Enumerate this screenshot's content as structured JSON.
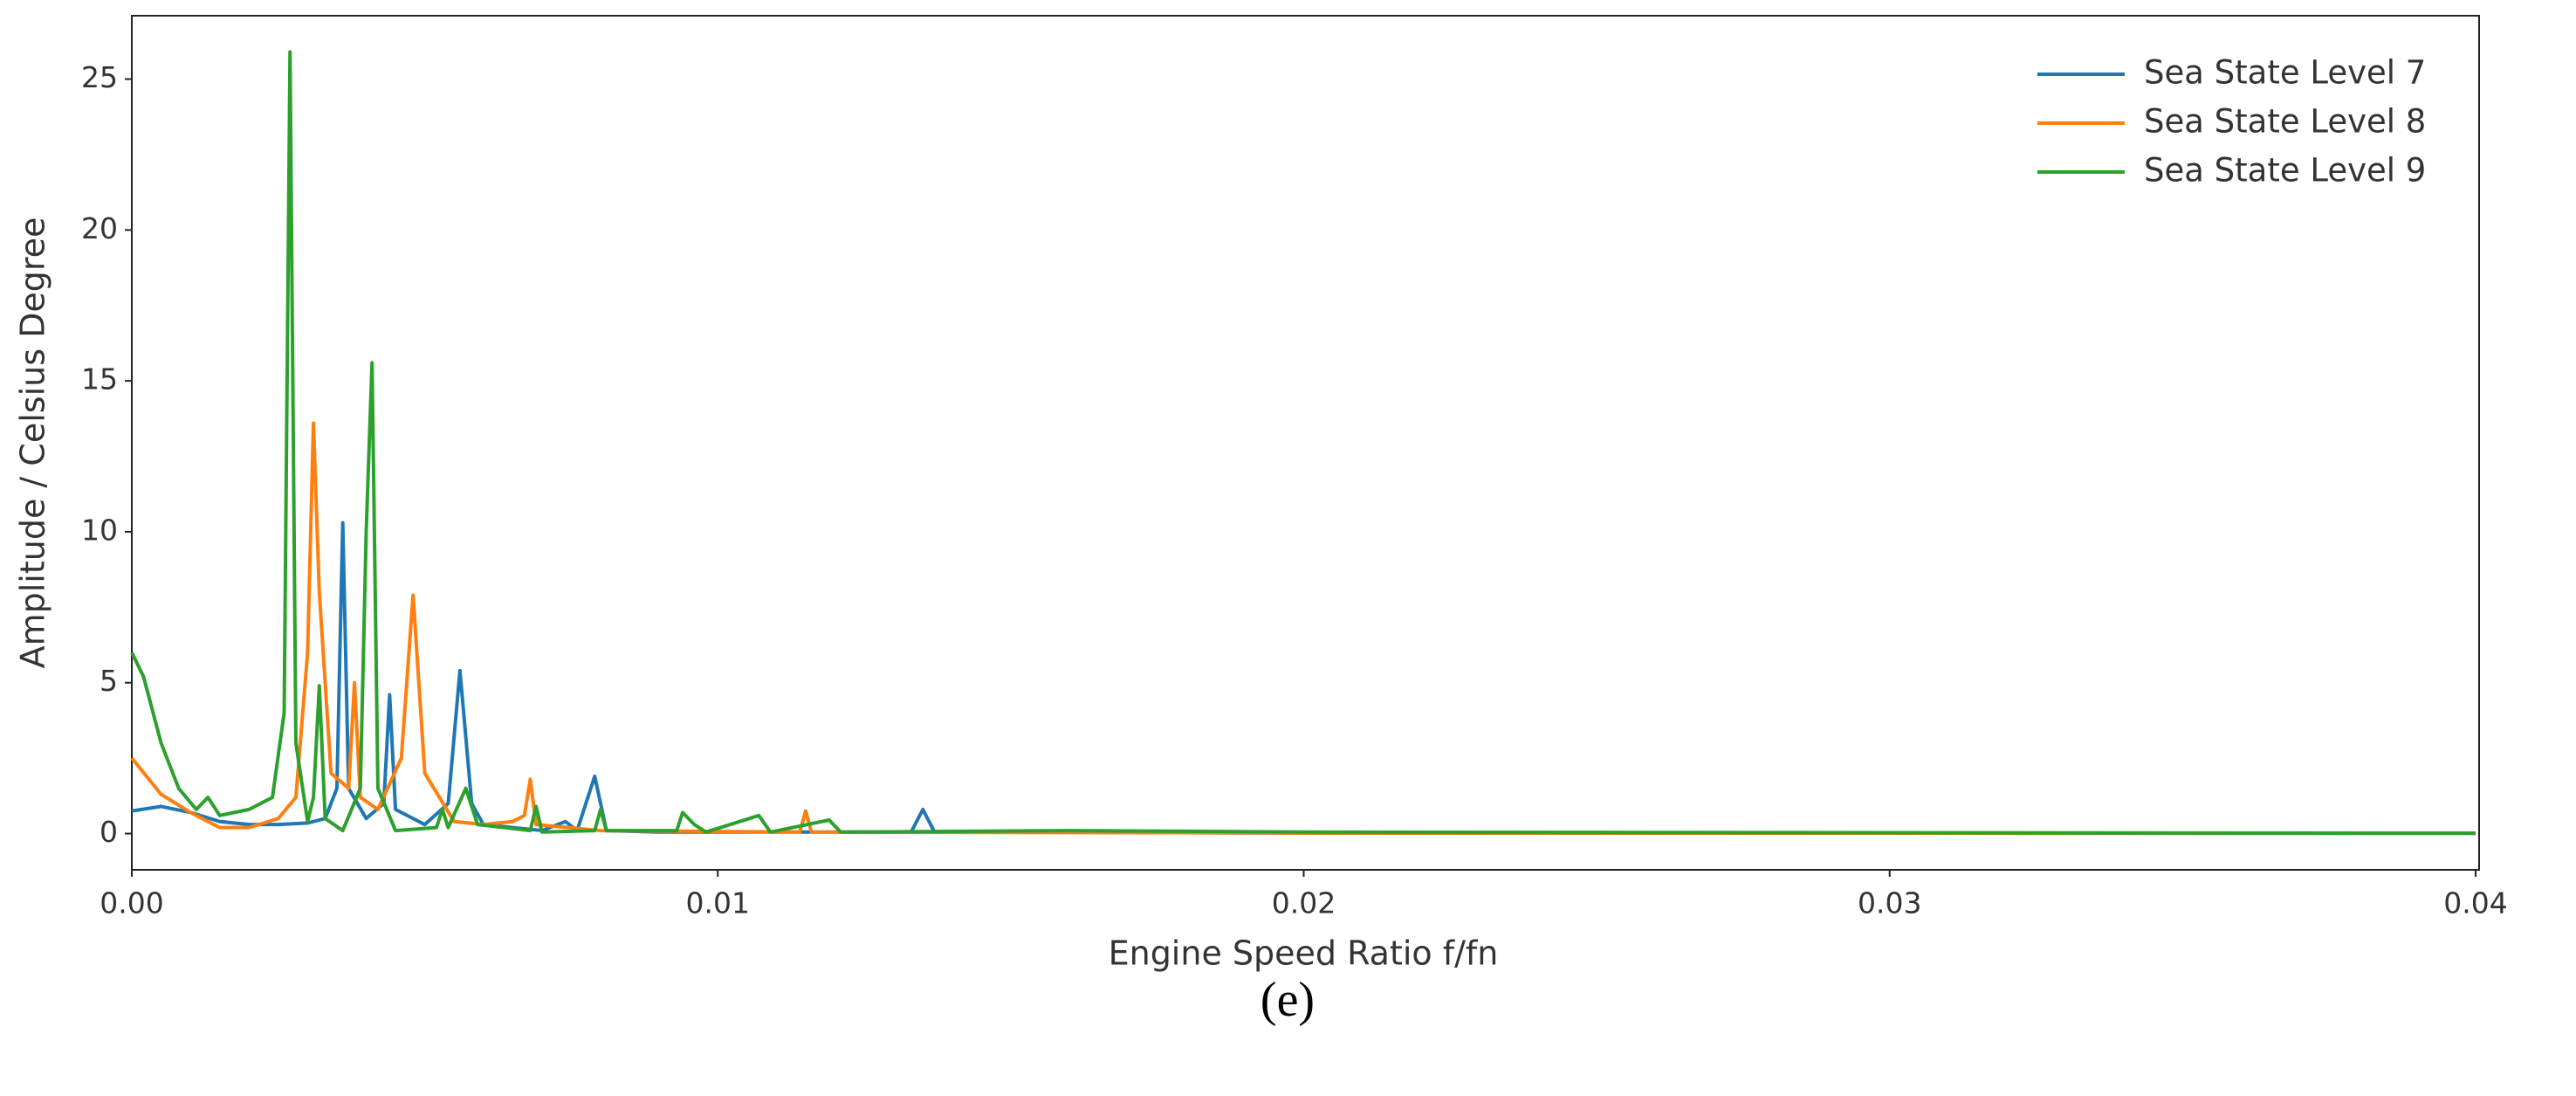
{
  "chart_data": {
    "type": "line",
    "xlabel": "Engine Speed Ratio f/fn",
    "ylabel": "Amplitude / Celsius Degree",
    "caption": "(e)",
    "xlim": [
      0,
      0.04
    ],
    "ylim": [
      -1.2,
      27.1
    ],
    "xticks": [
      {
        "value": 0,
        "label": "0.00"
      },
      0.01,
      0.02,
      0.03,
      0.04
    ],
    "yticks": [
      0,
      5,
      10,
      15,
      20,
      25
    ],
    "legend": "upper right",
    "series": [
      {
        "name": "Sea State Level 7",
        "color": "#1f77b4",
        "x": [
          0,
          0.0005,
          0.001,
          0.0015,
          0.002,
          0.0025,
          0.003,
          0.0033,
          0.0035,
          0.0036,
          0.0037,
          0.004,
          0.0043,
          0.0044,
          0.0045,
          0.005,
          0.0054,
          0.0056,
          0.0058,
          0.006,
          0.007,
          0.0074,
          0.0076,
          0.0079,
          0.0081,
          0.009,
          0.0133,
          0.0135,
          0.0137,
          0.02,
          0.04
        ],
        "values": [
          0.75,
          0.9,
          0.7,
          0.4,
          0.3,
          0.3,
          0.35,
          0.5,
          1.5,
          10.3,
          1.5,
          0.5,
          1.0,
          4.6,
          0.8,
          0.3,
          1.0,
          5.4,
          1.0,
          0.3,
          0.1,
          0.4,
          0.1,
          1.9,
          0.1,
          0.05,
          0.05,
          0.8,
          0.05,
          0.02,
          0.01
        ]
      },
      {
        "name": "Sea State Level 8",
        "color": "#ff7f0e",
        "x": [
          0,
          0.0005,
          0.001,
          0.0015,
          0.002,
          0.0025,
          0.0028,
          0.003,
          0.0031,
          0.0032,
          0.0034,
          0.0037,
          0.0038,
          0.0039,
          0.0042,
          0.0046,
          0.0048,
          0.005,
          0.0055,
          0.006,
          0.0065,
          0.0067,
          0.0068,
          0.0069,
          0.008,
          0.0114,
          0.0115,
          0.0116,
          0.02,
          0.04
        ],
        "values": [
          2.5,
          1.3,
          0.7,
          0.2,
          0.2,
          0.5,
          1.2,
          6,
          13.6,
          8,
          2,
          1.5,
          5.0,
          1.2,
          0.8,
          2.5,
          7.9,
          2,
          0.4,
          0.3,
          0.4,
          0.6,
          1.8,
          0.3,
          0.1,
          0.05,
          0.75,
          0.05,
          0.02,
          0.01
        ]
      },
      {
        "name": "Sea State Level 9",
        "color": "#2ca02c",
        "x": [
          0,
          0.0002,
          0.0005,
          0.0008,
          0.0011,
          0.0013,
          0.0015,
          0.002,
          0.0024,
          0.0026,
          0.0027,
          0.0028,
          0.003,
          0.0031,
          0.0032,
          0.0033,
          0.0036,
          0.0039,
          0.004,
          0.0041,
          0.0042,
          0.0045,
          0.0052,
          0.0053,
          0.0054,
          0.0057,
          0.0059,
          0.0068,
          0.0069,
          0.007,
          0.0079,
          0.008,
          0.0081,
          0.0093,
          0.0094,
          0.0096,
          0.0098,
          0.0107,
          0.0109,
          0.0119,
          0.0121,
          0.016,
          0.02,
          0.04
        ],
        "values": [
          6.0,
          5.2,
          3.0,
          1.5,
          0.8,
          1.2,
          0.6,
          0.8,
          1.2,
          4,
          25.9,
          3,
          0.4,
          1.2,
          4.9,
          0.5,
          0.1,
          1.5,
          10,
          15.6,
          1.5,
          0.1,
          0.2,
          0.8,
          0.2,
          1.5,
          0.3,
          0.1,
          0.9,
          0.05,
          0.1,
          0.8,
          0.1,
          0.1,
          0.7,
          0.3,
          0.05,
          0.6,
          0.05,
          0.45,
          0.05,
          0.1,
          0.05,
          0.01
        ]
      }
    ]
  }
}
